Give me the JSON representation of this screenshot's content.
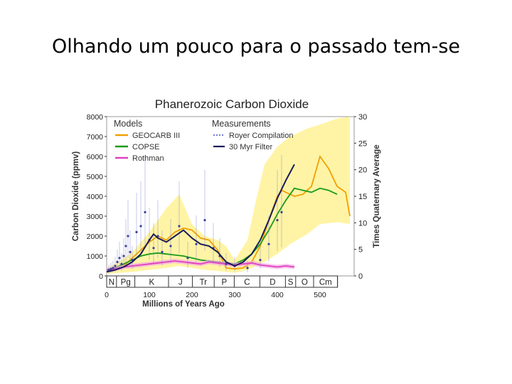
{
  "slide": {
    "title": "Olhando um pouco para o passado tem-se"
  },
  "chart_data": {
    "type": "line",
    "title": "Phanerozoic Carbon Dioxide",
    "xlabel": "Millions of Years Ago",
    "ylabel": "Carbon Dioxide (ppmv)",
    "ylabel_right": "Times Quaternary Average",
    "xlim": [
      0,
      580
    ],
    "ylim": [
      0,
      8000
    ],
    "ylim_right": [
      0,
      30
    ],
    "x_ticks": [
      "0",
      "100",
      "200",
      "300",
      "400",
      "500"
    ],
    "x_tick_values": [
      0,
      100,
      200,
      300,
      400,
      500
    ],
    "y_ticks": [
      "0",
      "1000",
      "2000",
      "3000",
      "4000",
      "5000",
      "6000",
      "7000",
      "8000"
    ],
    "y_tick_values": [
      0,
      1000,
      2000,
      3000,
      4000,
      5000,
      6000,
      7000,
      8000
    ],
    "y_right_ticks": [
      "0",
      "5",
      "10",
      "15",
      "20",
      "25",
      "30"
    ],
    "y_right_tick_values": [
      0,
      5,
      10,
      15,
      20,
      25,
      30
    ],
    "legend": {
      "models_title": "Models",
      "measurements_title": "Measurements",
      "placement": "top-left"
    },
    "colors": {
      "geocarb": "#f0a000",
      "copse": "#1a9a1a",
      "rothman": "#e040c0",
      "royer": "#7a7fd0",
      "filter": "#1a1a5a",
      "band": "#fff3a0",
      "band_inner": "#fff7c8"
    },
    "periods": [
      {
        "label": "N",
        "from": 0,
        "to": 23
      },
      {
        "label": "Pg",
        "from": 23,
        "to": 66
      },
      {
        "label": "K",
        "from": 66,
        "to": 145
      },
      {
        "label": "J",
        "from": 145,
        "to": 201
      },
      {
        "label": "Tr",
        "from": 201,
        "to": 252
      },
      {
        "label": "P",
        "from": 252,
        "to": 299
      },
      {
        "label": "C",
        "from": 299,
        "to": 359
      },
      {
        "label": "D",
        "from": 359,
        "to": 419
      },
      {
        "label": "S",
        "from": 419,
        "to": 443
      },
      {
        "label": "O",
        "from": 443,
        "to": 485
      },
      {
        "label": "Cm",
        "from": 485,
        "to": 541
      }
    ],
    "uncertainty_band": {
      "x": [
        0,
        30,
        60,
        100,
        140,
        170,
        200,
        230,
        260,
        280,
        300,
        330,
        350,
        370,
        400,
        430,
        470,
        500,
        540,
        570
      ],
      "upper": [
        400,
        700,
        1200,
        2200,
        3400,
        4100,
        2600,
        2000,
        1800,
        1500,
        800,
        1800,
        3800,
        5600,
        6500,
        7000,
        7400,
        7600,
        7900,
        8000
      ],
      "lower": [
        100,
        150,
        200,
        300,
        400,
        500,
        400,
        300,
        250,
        200,
        150,
        300,
        500,
        700,
        1100,
        1600,
        2100,
        2600,
        2700,
        2600
      ]
    },
    "series": [
      {
        "name": "GEOCARB III",
        "x": [
          0,
          20,
          40,
          60,
          80,
          100,
          120,
          140,
          160,
          180,
          200,
          220,
          240,
          260,
          280,
          300,
          320,
          340,
          360,
          380,
          400,
          410,
          420,
          440,
          460,
          480,
          500,
          520,
          540,
          560,
          570
        ],
        "values": [
          250,
          300,
          500,
          900,
          1300,
          1700,
          2000,
          1800,
          2200,
          2400,
          2300,
          1900,
          1800,
          1300,
          400,
          350,
          400,
          700,
          1500,
          2800,
          4000,
          4300,
          4200,
          4000,
          4100,
          4500,
          6000,
          5400,
          4500,
          4200,
          3000
        ]
      },
      {
        "name": "COPSE",
        "x": [
          0,
          20,
          40,
          60,
          80,
          100,
          120,
          140,
          160,
          180,
          200,
          220,
          240,
          260,
          280,
          300,
          320,
          340,
          360,
          380,
          400,
          420,
          440,
          460,
          480,
          500,
          520,
          540
        ],
        "values": [
          300,
          400,
          600,
          800,
          1000,
          1100,
          1150,
          1100,
          1050,
          1000,
          900,
          800,
          750,
          700,
          650,
          600,
          800,
          1100,
          1600,
          2300,
          3100,
          3800,
          4400,
          4300,
          4200,
          4400,
          4300,
          4100
        ]
      },
      {
        "name": "Rothman",
        "x": [
          0,
          20,
          40,
          60,
          80,
          100,
          120,
          140,
          160,
          180,
          200,
          220,
          240,
          260,
          280,
          300,
          320,
          340,
          360,
          380,
          400,
          420,
          440
        ],
        "values": [
          300,
          350,
          450,
          500,
          550,
          600,
          650,
          700,
          750,
          700,
          650,
          600,
          700,
          650,
          600,
          550,
          600,
          650,
          550,
          500,
          450,
          500,
          450
        ]
      },
      {
        "name": "Royer Compilation",
        "kind": "points",
        "x": [
          5,
          10,
          15,
          20,
          25,
          30,
          35,
          40,
          45,
          50,
          55,
          60,
          70,
          80,
          90,
          100,
          110,
          120,
          130,
          150,
          170,
          190,
          210,
          230,
          250,
          265,
          280,
          300,
          330,
          360,
          380,
          400,
          410
        ],
        "values": [
          300,
          350,
          400,
          500,
          700,
          900,
          600,
          1000,
          1500,
          2000,
          1200,
          800,
          2200,
          2500,
          3200,
          1800,
          1400,
          2000,
          1200,
          1500,
          2500,
          900,
          1600,
          2800,
          1400,
          1000,
          600,
          500,
          400,
          800,
          1600,
          2800,
          3200
        ]
      },
      {
        "name": "30 Myr Filter",
        "x": [
          0,
          20,
          40,
          60,
          80,
          100,
          110,
          120,
          140,
          160,
          180,
          200,
          220,
          240,
          260,
          280,
          300,
          320,
          340,
          360,
          380,
          400,
          420,
          440
        ],
        "values": [
          200,
          300,
          450,
          700,
          1100,
          1800,
          2100,
          1900,
          1700,
          2000,
          2300,
          1900,
          1600,
          1500,
          1200,
          700,
          500,
          700,
          1100,
          1800,
          2800,
          3900,
          4800,
          5600
        ]
      }
    ]
  }
}
